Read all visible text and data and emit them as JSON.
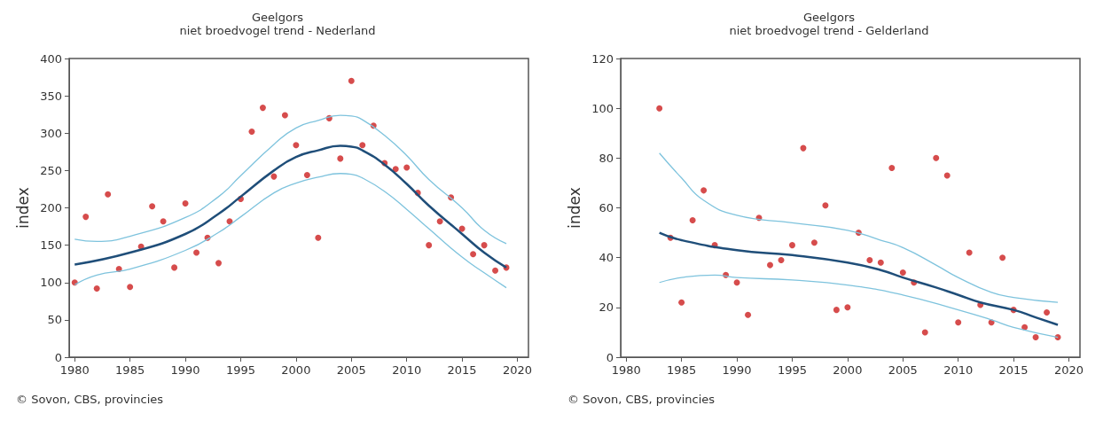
{
  "chart_data": [
    {
      "type": "scatter",
      "title": "Geelgors",
      "subtitle": "niet broedvogel trend - Nederland",
      "ylabel": "index",
      "annotations": [
        "© Sovon, CBS, provincies"
      ],
      "xlim": [
        1979.5,
        2021
      ],
      "xticks": [
        1980,
        1985,
        1990,
        1995,
        2000,
        2005,
        2010,
        2015,
        2020
      ],
      "ylim": [
        0,
        400
      ],
      "yticks": [
        0,
        50,
        100,
        150,
        200,
        250,
        300,
        350,
        400
      ],
      "grid": false,
      "line_style": "solid",
      "series": [
        {
          "marker": "circle",
          "color": "#cc1f1f",
          "x": [
            1980,
            1981,
            1982,
            1983,
            1984,
            1985,
            1986,
            1987,
            1988,
            1989,
            1990,
            1991,
            1992,
            1993,
            1994,
            1995,
            1996,
            1997,
            1998,
            1999,
            2000,
            2001,
            2002,
            2003,
            2004,
            2005,
            2006,
            2007,
            2008,
            2009,
            2010,
            2011,
            2012,
            2013,
            2014,
            2015,
            2016,
            2017,
            2018,
            2019
          ],
          "values": [
            100,
            188,
            92,
            218,
            118,
            94,
            148,
            202,
            182,
            120,
            206,
            140,
            160,
            126,
            182,
            212,
            302,
            334,
            242,
            324,
            284,
            244,
            160,
            320,
            266,
            370,
            284,
            310,
            260,
            252,
            254,
            220,
            150,
            182,
            214,
            172,
            138,
            150,
            116,
            120
          ]
        },
        {
          "type": "line",
          "marker": "none",
          "color": "#1f4e79",
          "x": [
            1980,
            1985,
            1990,
            1993,
            1995,
            1998,
            2000,
            2002,
            2004,
            2005,
            2006,
            2008,
            2010,
            2012,
            2015,
            2017,
            2019
          ],
          "values": [
            124,
            140,
            165,
            192,
            215,
            250,
            268,
            277,
            283,
            282,
            277,
            258,
            232,
            203,
            165,
            140,
            120
          ]
        },
        {
          "type": "line",
          "marker": "none",
          "color": "#7ec3dd",
          "x": [
            1980,
            1982,
            1985,
            1990,
            1993,
            1995,
            1998,
            2000,
            2002,
            2004,
            2005,
            2006,
            2008,
            2010,
            2012,
            2015,
            2017,
            2019
          ],
          "values": [
            158,
            155,
            162,
            187,
            215,
            243,
            285,
            307,
            317,
            324,
            323,
            318,
            297,
            270,
            238,
            200,
            170,
            152
          ]
        },
        {
          "type": "line",
          "marker": "none",
          "color": "#7ec3dd",
          "x": [
            1980,
            1982,
            1985,
            1990,
            1993,
            1995,
            1998,
            2000,
            2002,
            2004,
            2005,
            2006,
            2008,
            2010,
            2012,
            2015,
            2017,
            2019
          ],
          "values": [
            97,
            110,
            118,
            143,
            167,
            188,
            220,
            233,
            241,
            246,
            245,
            240,
            222,
            198,
            172,
            134,
            113,
            93
          ]
        }
      ]
    },
    {
      "type": "scatter",
      "title": "Geelgors",
      "subtitle": "niet broedvogel trend - Gelderland",
      "ylabel": "index",
      "annotations": [
        "© Sovon, CBS, provincies"
      ],
      "xlim": [
        1979.5,
        2021
      ],
      "xticks": [
        1980,
        1985,
        1990,
        1995,
        2000,
        2005,
        2010,
        2015,
        2020
      ],
      "ylim": [
        0,
        120
      ],
      "yticks": [
        0,
        20,
        40,
        60,
        80,
        100,
        120
      ],
      "grid": false,
      "line_style": "solid",
      "series": [
        {
          "marker": "circle",
          "color": "#cc1f1f",
          "x": [
            1983,
            1984,
            1985,
            1986,
            1987,
            1988,
            1989,
            1990,
            1991,
            1992,
            1993,
            1994,
            1995,
            1996,
            1997,
            1998,
            1999,
            2000,
            2001,
            2002,
            2003,
            2004,
            2005,
            2006,
            2007,
            2008,
            2009,
            2010,
            2011,
            2012,
            2013,
            2014,
            2015,
            2016,
            2017,
            2018,
            2019
          ],
          "values": [
            100,
            48,
            22,
            55,
            67,
            45,
            33,
            30,
            17,
            56,
            37,
            39,
            45,
            84,
            46,
            61,
            19,
            20,
            50,
            39,
            38,
            76,
            34,
            30,
            10,
            80,
            73,
            14,
            42,
            21,
            14,
            40,
            19,
            12,
            8,
            18,
            8
          ]
        },
        {
          "type": "line",
          "marker": "none",
          "color": "#1f4e79",
          "x": [
            1983,
            1985,
            1990,
            1995,
            2000,
            2003,
            2005,
            2008,
            2010,
            2012,
            2015,
            2017,
            2019
          ],
          "values": [
            50,
            47,
            43,
            41,
            38,
            35,
            32,
            28,
            25,
            22,
            19,
            16,
            13
          ]
        },
        {
          "type": "line",
          "marker": "none",
          "color": "#7ec3dd",
          "x": [
            1983,
            1985,
            1987,
            1990,
            1995,
            2000,
            2003,
            2005,
            2008,
            2010,
            2013,
            2015,
            2019
          ],
          "values": [
            82,
            72,
            63,
            57,
            54,
            51,
            47,
            44,
            37,
            32,
            26,
            24,
            22
          ]
        },
        {
          "type": "line",
          "marker": "none",
          "color": "#7ec3dd",
          "x": [
            1983,
            1985,
            1988,
            1990,
            1995,
            2000,
            2005,
            2010,
            2013,
            2015,
            2019
          ],
          "values": [
            30,
            32,
            33,
            32,
            31,
            29,
            25,
            19,
            15,
            12,
            8
          ]
        }
      ]
    }
  ]
}
